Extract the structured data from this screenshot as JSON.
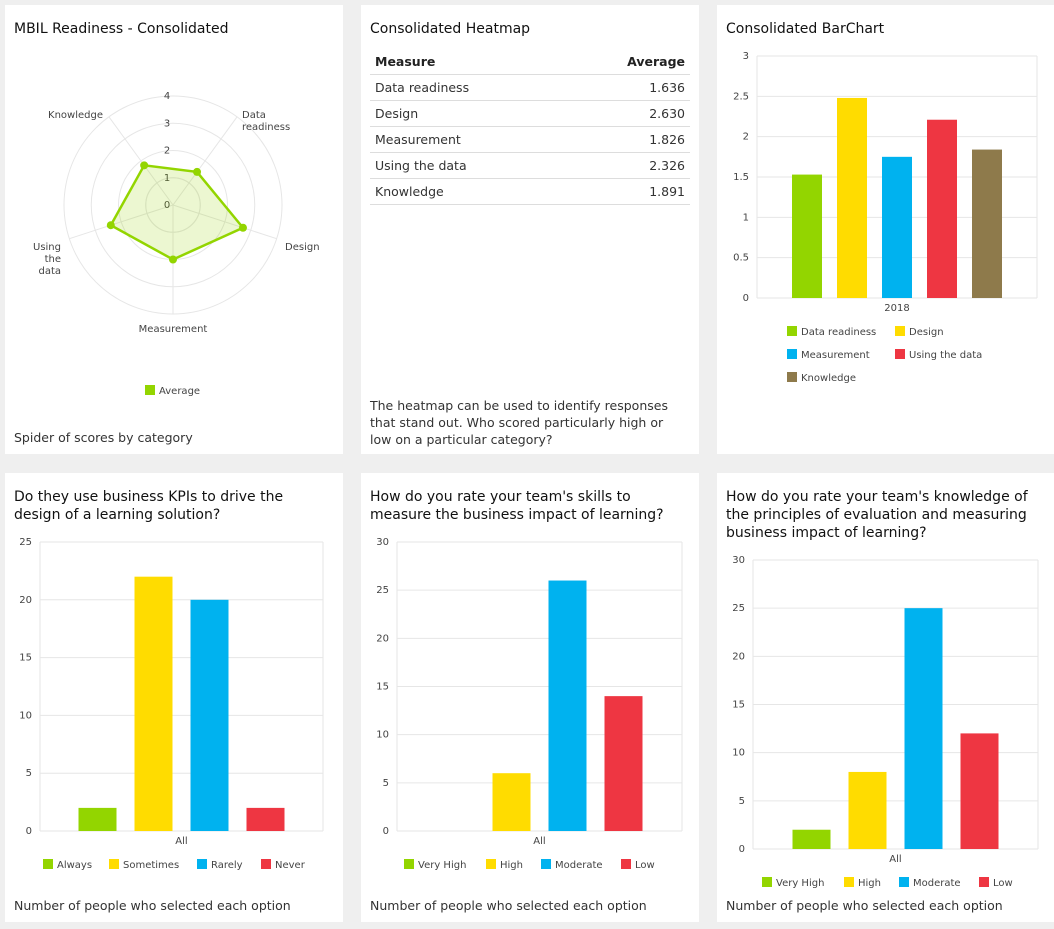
{
  "colors": {
    "green": "#93d500",
    "yellow": "#ffdc00",
    "blue": "#00b2ef",
    "red": "#ee3642",
    "brown": "#8e7a4b"
  },
  "spider": {
    "title": "MBIL Readiness - Consolidated",
    "caption": "Spider of scores by category",
    "chart_data": {
      "type": "radar",
      "axes": [
        "Data readiness",
        "Design",
        "Measurement",
        "Using the data",
        "Knowledge"
      ],
      "ticks": [
        "0",
        "1",
        "2",
        "3",
        "4"
      ],
      "range": [
        0,
        4
      ],
      "series": [
        {
          "name": "Average",
          "values": [
            1.5,
            2.7,
            2.0,
            2.4,
            1.8
          ]
        }
      ],
      "legend": "bottom"
    }
  },
  "heatmap": {
    "title": "Consolidated Heatmap",
    "headers": [
      "Measure",
      "Average"
    ],
    "rows": [
      [
        "Data readiness",
        "1.636"
      ],
      [
        "Design",
        "2.630"
      ],
      [
        "Measurement",
        "1.826"
      ],
      [
        "Using the data",
        "2.326"
      ],
      [
        "Knowledge",
        "1.891"
      ]
    ],
    "caption": "The heatmap can be used to identify responses that stand out. Who scored particularly high or low on a particular category?"
  },
  "barchart": {
    "title": "Consolidated BarChart",
    "chart_data": {
      "type": "bar",
      "categories": [
        "2018"
      ],
      "ylim": [
        0,
        3
      ],
      "yticks": [
        "0",
        "0.5",
        "1",
        "1.5",
        "2",
        "2.5",
        "3"
      ],
      "grid": true,
      "legend": "bottom",
      "series": [
        {
          "name": "Data readiness",
          "values": [
            1.53
          ]
        },
        {
          "name": "Design",
          "values": [
            2.48
          ]
        },
        {
          "name": "Measurement",
          "values": [
            1.75
          ]
        },
        {
          "name": "Using the data",
          "values": [
            2.21
          ]
        },
        {
          "name": "Knowledge",
          "values": [
            1.84
          ]
        }
      ]
    }
  },
  "kpi": {
    "title": "Do they use business KPIs to drive the design of a learning solution?",
    "caption": "Number of people who selected each option",
    "chart_data": {
      "type": "bar",
      "categories": [
        "All"
      ],
      "ylim": [
        0,
        25
      ],
      "yticks": [
        "0",
        "5",
        "10",
        "15",
        "20",
        "25"
      ],
      "grid": true,
      "legend": "bottom",
      "series": [
        {
          "name": "Always",
          "values": [
            2
          ]
        },
        {
          "name": "Sometimes",
          "values": [
            22
          ]
        },
        {
          "name": "Rarely",
          "values": [
            20
          ]
        },
        {
          "name": "Never",
          "values": [
            2
          ]
        }
      ]
    }
  },
  "skills": {
    "title": "How do you rate your team's skills to measure the business impact of learning?",
    "caption": "Number of people who selected each option",
    "chart_data": {
      "type": "bar",
      "categories": [
        "All"
      ],
      "ylim": [
        0,
        30
      ],
      "yticks": [
        "0",
        "5",
        "10",
        "15",
        "20",
        "25",
        "30"
      ],
      "grid": true,
      "legend": "bottom",
      "series": [
        {
          "name": "Very High",
          "values": [
            0
          ]
        },
        {
          "name": "High",
          "values": [
            6
          ]
        },
        {
          "name": "Moderate",
          "values": [
            26
          ]
        },
        {
          "name": "Low",
          "values": [
            14
          ]
        }
      ]
    }
  },
  "knowledge": {
    "title": "How do you rate your team's knowledge of the principles of evaluation and measuring business impact of learning?",
    "caption": "Number of people who selected each option",
    "chart_data": {
      "type": "bar",
      "categories": [
        "All"
      ],
      "ylim": [
        0,
        30
      ],
      "yticks": [
        "0",
        "5",
        "10",
        "15",
        "20",
        "25",
        "30"
      ],
      "grid": true,
      "legend": "bottom",
      "series": [
        {
          "name": "Very High",
          "values": [
            2
          ]
        },
        {
          "name": "High",
          "values": [
            8
          ]
        },
        {
          "name": "Moderate",
          "values": [
            25
          ]
        },
        {
          "name": "Low",
          "values": [
            12
          ]
        }
      ]
    }
  }
}
